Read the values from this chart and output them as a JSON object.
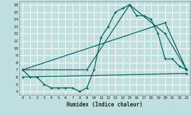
{
  "background_color": "#c0e0e0",
  "grid_color": "#ffffff",
  "line_color": "#006060",
  "marker_color": "#006060",
  "xlabel": "Humidex (Indice chaleur)",
  "xlim": [
    -0.5,
    23.5
  ],
  "ylim": [
    3.5,
    16.5
  ],
  "xticks": [
    0,
    1,
    2,
    3,
    4,
    5,
    6,
    7,
    8,
    9,
    10,
    11,
    12,
    13,
    14,
    15,
    16,
    17,
    18,
    19,
    20,
    21,
    22,
    23
  ],
  "yticks": [
    4,
    5,
    6,
    7,
    8,
    9,
    10,
    11,
    12,
    13,
    14,
    15,
    16
  ],
  "curve1_x": [
    0,
    1,
    2,
    3,
    4,
    5,
    6,
    7,
    8,
    9,
    10,
    11,
    12,
    13,
    14,
    15,
    16,
    17,
    18,
    19,
    20,
    21,
    22,
    23
  ],
  "curve1_y": [
    7.0,
    6.0,
    6.0,
    5.0,
    4.5,
    4.5,
    4.5,
    4.5,
    4.0,
    4.5,
    7.0,
    11.5,
    13.0,
    15.0,
    15.5,
    16.0,
    14.5,
    14.5,
    14.0,
    12.0,
    8.5,
    8.5,
    7.5,
    7.0
  ],
  "curve2_x": [
    0,
    9,
    15,
    20,
    23
  ],
  "curve2_y": [
    7.0,
    7.0,
    16.0,
    12.0,
    7.0
  ],
  "curve3_x": [
    0,
    20,
    23
  ],
  "curve3_y": [
    7.0,
    13.5,
    7.0
  ],
  "curve4_x": [
    0,
    23
  ],
  "curve4_y": [
    6.0,
    6.5
  ]
}
